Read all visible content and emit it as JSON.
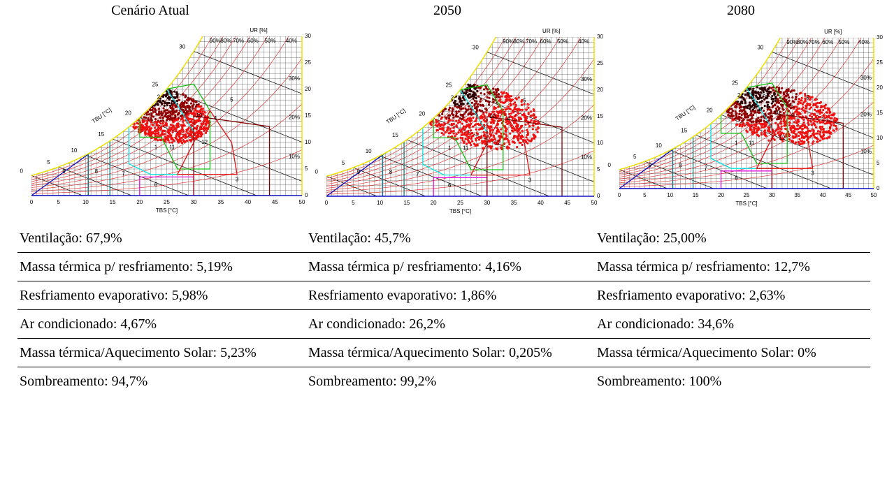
{
  "columns": [
    "Cenário Atual",
    "2050",
    "2080"
  ],
  "chart_text": {
    "x_axis": "TBS [°C]",
    "wb_axis": "TBU [°C]",
    "rh_axis": "UR [%]",
    "x_ticks": [
      "0",
      "5",
      "10",
      "15",
      "20",
      "25",
      "30",
      "35",
      "40",
      "45",
      "50"
    ],
    "w_ticks": [
      "0",
      "5",
      "10",
      "15",
      "20",
      "25",
      "30"
    ],
    "wb_ticks": [
      "0",
      "5",
      "10",
      "15",
      "20",
      "25",
      "30"
    ],
    "rh_labels": [
      "90%",
      "80%",
      "70%",
      "60%",
      "50%",
      "40%",
      "30%",
      "20%",
      "10%"
    ],
    "zone_labels": [
      "1",
      "2",
      "3",
      "4",
      "5",
      "6",
      "7",
      "8",
      "9",
      "10",
      "11",
      "12"
    ]
  },
  "rows": [
    [
      "Ventilação: 67,9%",
      "Ventilação: 45,7%",
      "Ventilação: 25,00%"
    ],
    [
      "Massa térmica p/ resfriamento: 5,19%",
      "Massa térmica p/ resfriamento: 4,16%",
      "Massa térmica p/ resfriamento: 12,7%"
    ],
    [
      "Resfriamento evaporativo: 5,98%",
      "Resfriamento evaporativo: 1,86%",
      "Resfriamento evaporativo: 2,63%"
    ],
    [
      "Ar condicionado: 4,67%",
      "Ar condicionado: 26,2%",
      "Ar condicionado: 34,6%"
    ],
    [
      "Massa térmica/Aquecimento Solar: 5,23%",
      "Massa térmica/Aquecimento Solar: 0,205%",
      "Massa térmica/Aquecimento Solar: 0%"
    ],
    [
      "Sombreamento: 94,7%",
      "Sombreamento: 99,2%",
      "Sombreamento: 100%"
    ]
  ]
}
